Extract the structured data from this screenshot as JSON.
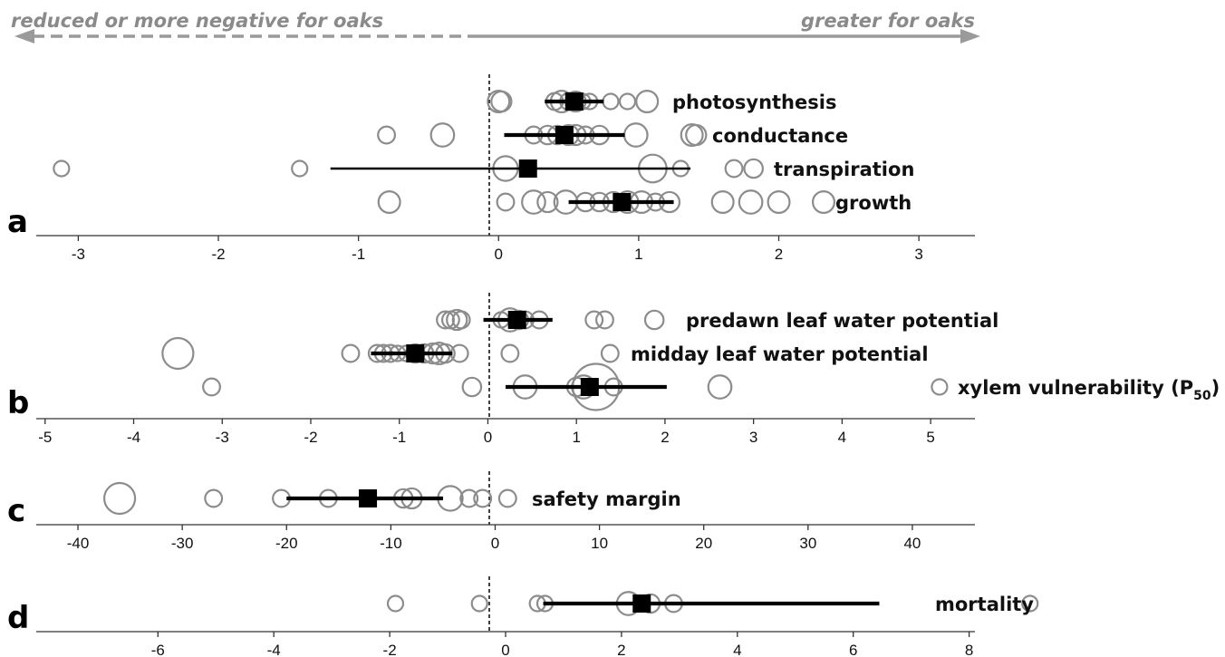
{
  "header": {
    "left_label": "reduced or more negative for oaks",
    "right_label": "greater for oaks",
    "arrow_color": "#9a9a9a"
  },
  "chart_data": [
    {
      "panel": "a",
      "type": "scatter",
      "xlim": [
        -3.3,
        3.4
      ],
      "xticks": [
        -3,
        -2,
        -1,
        0,
        1,
        2,
        3
      ],
      "tick_labels": [
        "-3",
        "-2",
        "-1",
        "0",
        "1",
        "2",
        "3"
      ],
      "series": [
        {
          "name": "photosynthesis",
          "studies": [
            [
              0.0,
              1.4
            ],
            [
              0.02,
              1.3
            ],
            [
              0.4,
              1.1
            ],
            [
              0.45,
              1.4
            ],
            [
              0.5,
              1.1
            ],
            [
              0.55,
              1.3
            ],
            [
              0.6,
              1.0
            ],
            [
              0.65,
              1.0
            ],
            [
              0.8,
              1.0
            ],
            [
              0.92,
              1.0
            ],
            [
              1.06,
              1.4
            ]
          ],
          "mean": 0.54,
          "ci": [
            0.33,
            0.75
          ]
        },
        {
          "name": "conductance",
          "studies": [
            [
              -0.8,
              1.1
            ],
            [
              -0.4,
              1.5
            ],
            [
              0.25,
              1.1
            ],
            [
              0.35,
              1.2
            ],
            [
              0.42,
              1.2
            ],
            [
              0.5,
              1.3
            ],
            [
              0.55,
              1.3
            ],
            [
              0.62,
              1.1
            ],
            [
              0.72,
              1.2
            ],
            [
              0.98,
              1.5
            ],
            [
              1.38,
              1.4
            ],
            [
              1.41,
              1.3
            ]
          ],
          "mean": 0.47,
          "ci": [
            0.04,
            0.9
          ]
        },
        {
          "name": "transpiration",
          "studies": [
            [
              -3.12,
              1.0
            ],
            [
              -1.42,
              1.0
            ],
            [
              0.05,
              1.6
            ],
            [
              1.1,
              1.8
            ],
            [
              1.3,
              1.0
            ],
            [
              1.68,
              1.1
            ],
            [
              1.82,
              1.2
            ]
          ],
          "mean": 0.21,
          "ci": [
            -1.2,
            1.37
          ]
        },
        {
          "name": "growth",
          "studies": [
            [
              -0.78,
              1.4
            ],
            [
              0.05,
              1.1
            ],
            [
              0.25,
              1.5
            ],
            [
              0.35,
              1.3
            ],
            [
              0.48,
              1.5
            ],
            [
              0.62,
              1.2
            ],
            [
              0.72,
              1.2
            ],
            [
              0.82,
              1.3
            ],
            [
              0.92,
              1.4
            ],
            [
              1.02,
              1.4
            ],
            [
              1.12,
              1.1
            ],
            [
              1.22,
              1.3
            ],
            [
              1.6,
              1.4
            ],
            [
              1.8,
              1.5
            ],
            [
              2.0,
              1.4
            ],
            [
              2.32,
              1.4
            ]
          ],
          "mean": 0.88,
          "ci": [
            0.5,
            1.25
          ]
        }
      ]
    },
    {
      "panel": "b",
      "type": "scatter",
      "xlim": [
        -5.1,
        5.5
      ],
      "xticks": [
        -5,
        -4,
        -3,
        -2,
        -1,
        0,
        1,
        2,
        3,
        4,
        5
      ],
      "tick_labels": [
        "-5",
        "-4",
        "-3",
        "-2",
        "-1",
        "0",
        "1",
        "2",
        "3",
        "4",
        "5"
      ],
      "series": [
        {
          "name": "predawn leaf water potential",
          "studies": [
            [
              -0.48,
              1.1
            ],
            [
              -0.42,
              1.1
            ],
            [
              -0.35,
              1.3
            ],
            [
              -0.3,
              1.1
            ],
            [
              0.15,
              1.0
            ],
            [
              0.25,
              1.5
            ],
            [
              0.35,
              1.2
            ],
            [
              0.42,
              1.1
            ],
            [
              0.58,
              1.1
            ],
            [
              1.2,
              1.1
            ],
            [
              1.32,
              1.1
            ],
            [
              1.88,
              1.2
            ]
          ],
          "mean": 0.33,
          "ci": [
            -0.05,
            0.73
          ]
        },
        {
          "name": "midday leaf water potential",
          "studies": [
            [
              -3.5,
              2.0
            ],
            [
              -1.55,
              1.1
            ],
            [
              -1.25,
              1.1
            ],
            [
              -1.18,
              1.1
            ],
            [
              -1.1,
              1.1
            ],
            [
              -1.02,
              1.0
            ],
            [
              -0.92,
              1.0
            ],
            [
              -0.82,
              1.2
            ],
            [
              -0.72,
              1.2
            ],
            [
              -0.62,
              1.3
            ],
            [
              -0.55,
              1.4
            ],
            [
              -0.48,
              1.2
            ],
            [
              -0.32,
              1.1
            ],
            [
              0.25,
              1.1
            ],
            [
              1.38,
              1.1
            ]
          ],
          "mean": -0.82,
          "ci": [
            -1.32,
            -0.4
          ]
        },
        {
          "name": "xylem vulnerability (P50)",
          "label_main": "xylem vulnerability (P",
          "label_sub": "50",
          "label_end": ")",
          "studies": [
            [
              -3.12,
              1.1
            ],
            [
              -0.18,
              1.2
            ],
            [
              0.42,
              1.5
            ],
            [
              1.0,
              1.2
            ],
            [
              1.08,
              1.5
            ],
            [
              1.22,
              3.0
            ],
            [
              1.42,
              1.1
            ],
            [
              2.62,
              1.5
            ],
            [
              5.1,
              1.0
            ]
          ],
          "mean": 1.15,
          "ci": [
            0.2,
            2.02
          ]
        }
      ]
    },
    {
      "panel": "c",
      "type": "scatter",
      "xlim": [
        -44,
        46
      ],
      "xticks": [
        -40,
        -30,
        -20,
        -10,
        0,
        10,
        20,
        30,
        40
      ],
      "tick_labels": [
        "-40",
        "-30",
        "-20",
        "-10",
        "0",
        "10",
        "20",
        "30",
        "40"
      ],
      "series": [
        {
          "name": "safety margin",
          "studies": [
            [
              -36,
              2.0
            ],
            [
              -27,
              1.1
            ],
            [
              -20.5,
              1.1
            ],
            [
              -16,
              1.1
            ],
            [
              -8.8,
              1.2
            ],
            [
              -8,
              1.3
            ],
            [
              -4.3,
              1.6
            ],
            [
              -2.5,
              1.1
            ],
            [
              -1.2,
              1.1
            ],
            [
              1.2,
              1.1
            ]
          ],
          "mean": -12.2,
          "ci": [
            -20,
            -5
          ]
        }
      ]
    },
    {
      "panel": "d",
      "type": "scatter",
      "xlim": [
        -8.1,
        8.1
      ],
      "xticks": [
        -6,
        -4,
        -2,
        0,
        2,
        4,
        6,
        8
      ],
      "tick_labels": [
        "-6",
        "-4",
        "-2",
        "0",
        "2",
        "4",
        "6",
        "8"
      ],
      "series": [
        {
          "name": "mortality",
          "studies": [
            [
              -1.9,
              1.0
            ],
            [
              -0.45,
              1.0
            ],
            [
              0.55,
              1.0
            ],
            [
              0.68,
              1.0
            ],
            [
              2.12,
              1.5
            ],
            [
              2.5,
              1.2
            ],
            [
              2.9,
              1.1
            ],
            [
              9.05,
              1.0
            ],
            [
              14.7,
              1.0
            ]
          ],
          "mean": 2.35,
          "ci": [
            0.65,
            6.45
          ]
        }
      ]
    }
  ]
}
